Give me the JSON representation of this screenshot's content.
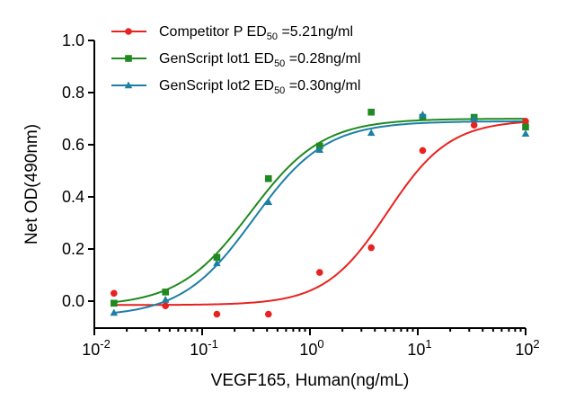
{
  "chart_data": {
    "type": "scatter",
    "x_scale": "log",
    "xlabel": "VEGF165, Human(ng/mL)",
    "ylabel": "Net OD(490nm)",
    "xlim": [
      0.01,
      100
    ],
    "ylim": [
      -0.1,
      1.0
    ],
    "x_ticks": [
      {
        "value": 0.01,
        "base": "10",
        "exp": "-2"
      },
      {
        "value": 0.1,
        "base": "10",
        "exp": "-1"
      },
      {
        "value": 1,
        "base": "10",
        "exp": "0"
      },
      {
        "value": 10,
        "base": "10",
        "exp": "1"
      },
      {
        "value": 100,
        "base": "10",
        "exp": "2"
      }
    ],
    "y_ticks": [
      {
        "value": 0.0,
        "label": "0.0"
      },
      {
        "value": 0.2,
        "label": "0.2"
      },
      {
        "value": 0.4,
        "label": "0.4"
      },
      {
        "value": 0.6,
        "label": "0.6"
      },
      {
        "value": 0.8,
        "label": "0.8"
      },
      {
        "value": 1.0,
        "label": "1.0"
      }
    ],
    "legend_position": "top-left",
    "series": [
      {
        "name": "Competitor P",
        "ed_label": "ED",
        "ed_sub": "50",
        "ed_value": "=5.21ng/ml",
        "color": "#e8221f",
        "marker": "circle",
        "x": [
          0.0152,
          0.0457,
          0.137,
          0.412,
          1.23,
          3.7,
          11.1,
          33.3,
          100
        ],
        "y": [
          0.03,
          -0.018,
          -0.05,
          -0.05,
          0.11,
          0.205,
          0.578,
          0.675,
          0.69
        ],
        "fit": {
          "bottom": -0.015,
          "top": 0.695,
          "ec50": 5.21,
          "hill": 1.5
        }
      },
      {
        "name": "GenScript lot1",
        "ed_label": "ED",
        "ed_sub": "50",
        "ed_value": "=0.28ng/ml",
        "color": "#1f8a1f",
        "marker": "square",
        "x": [
          0.0152,
          0.0457,
          0.137,
          0.412,
          1.23,
          3.7,
          11.1,
          33.3,
          100
        ],
        "y": [
          -0.008,
          0.035,
          0.168,
          0.47,
          0.595,
          0.725,
          0.705,
          0.705,
          0.668
        ],
        "fit": {
          "bottom": -0.02,
          "top": 0.7,
          "ec50": 0.28,
          "hill": 1.3
        }
      },
      {
        "name": "GenScript lot2",
        "ed_label": "ED",
        "ed_sub": "50",
        "ed_value": "=0.30ng/ml",
        "color": "#1c7fa6",
        "marker": "triangle",
        "x": [
          0.0152,
          0.0457,
          0.137,
          0.412,
          1.23,
          3.7,
          11.1,
          33.3,
          100
        ],
        "y": [
          -0.045,
          0.005,
          0.145,
          0.38,
          0.58,
          0.645,
          0.715,
          0.7,
          0.642
        ],
        "fit": {
          "bottom": -0.06,
          "top": 0.69,
          "ec50": 0.3,
          "hill": 1.3
        }
      }
    ]
  }
}
